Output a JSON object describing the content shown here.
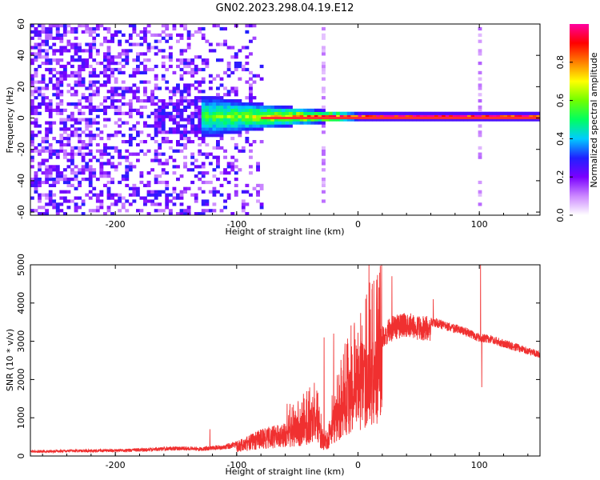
{
  "title": "GN02.2023.298.04.19.E12",
  "colors": {
    "snr_line": "#f03030",
    "spectrogram_core": "#ff3030",
    "spectrogram_noise": "#7a18ff"
  },
  "chart_data": [
    {
      "type": "heatmap",
      "xlabel": "Height of straight line (km)",
      "ylabel": "Frequency (Hz)",
      "xlim": [
        -270,
        150
      ],
      "ylim": [
        -62,
        60
      ],
      "x_ticks": [
        -200,
        -100,
        0,
        100
      ],
      "y_ticks": [
        -60,
        -40,
        -20,
        0,
        20,
        40,
        60
      ],
      "colorbar": {
        "label": "Normalized spectral amplitude",
        "range": [
          0,
          1
        ],
        "ticks": [
          0.0,
          0.2,
          0.4,
          0.6,
          0.8
        ],
        "colors": [
          "#ffffff",
          "#cc88ff",
          "#7a00ff",
          "#2020ff",
          "#00ccff",
          "#00ff60",
          "#70ff00",
          "#ffff00",
          "#ff8000",
          "#ff0000",
          "#ff00a0"
        ]
      },
      "features": {
        "broadband_noise_x_range": [
          -270,
          -80
        ],
        "narrowband_line_frequency": 0,
        "narrowband_line_x_range": [
          -130,
          150
        ],
        "bandwidth_at_x": [
          [
            -270,
            60
          ],
          [
            -130,
            14
          ],
          [
            -80,
            8
          ],
          [
            -30,
            4
          ],
          [
            0,
            2
          ],
          [
            150,
            2
          ]
        ],
        "vertical_stripes_x": [
          -30,
          100
        ]
      }
    },
    {
      "type": "line",
      "xlabel": "Height of straight line (km)",
      "ylabel": "SNR (10 * v/v)",
      "xlim": [
        -270,
        150
      ],
      "ylim": [
        0,
        5000
      ],
      "x_ticks": [
        -200,
        -100,
        0,
        100
      ],
      "y_ticks": [
        0,
        1000,
        2000,
        3000,
        4000,
        5000
      ],
      "series": [
        {
          "values_envelope": [
            [
              -270,
              150
            ],
            [
              -230,
              170
            ],
            [
              -200,
              180
            ],
            [
              -170,
              220
            ],
            [
              -150,
              260
            ],
            [
              -130,
              240
            ],
            [
              -110,
              300
            ],
            [
              -100,
              400
            ],
            [
              -90,
              550
            ],
            [
              -80,
              700
            ],
            [
              -70,
              800
            ],
            [
              -60,
              900
            ],
            [
              -50,
              1000
            ],
            [
              -40,
              1200
            ],
            [
              -35,
              1350
            ],
            [
              -30,
              700
            ],
            [
              -25,
              500
            ],
            [
              -20,
              1300
            ],
            [
              -15,
              1700
            ],
            [
              -10,
              2100
            ],
            [
              -5,
              2400
            ],
            [
              0,
              2600
            ],
            [
              5,
              2800
            ],
            [
              10,
              3050
            ],
            [
              15,
              3200
            ],
            [
              20,
              3400
            ],
            [
              25,
              3600
            ],
            [
              30,
              3700
            ],
            [
              40,
              3750
            ],
            [
              50,
              3700
            ],
            [
              60,
              3650
            ],
            [
              70,
              3550
            ],
            [
              80,
              3450
            ],
            [
              90,
              3350
            ],
            [
              100,
              3200
            ],
            [
              110,
              3150
            ],
            [
              120,
              3050
            ],
            [
              130,
              2950
            ],
            [
              140,
              2850
            ],
            [
              150,
              2750
            ]
          ],
          "spikes": [
            [
              -20,
              3200
            ],
            [
              -28,
              3100
            ],
            [
              9,
              5000
            ],
            [
              28,
              4700
            ],
            [
              62,
              4100
            ],
            [
              101,
              5000
            ],
            [
              102,
              1800
            ],
            [
              -122,
              700
            ]
          ]
        }
      ]
    }
  ]
}
